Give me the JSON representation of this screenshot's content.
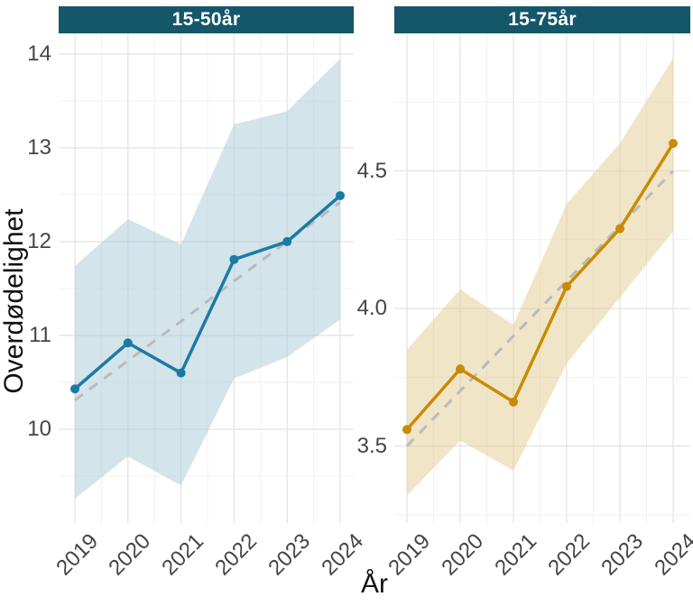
{
  "figure": {
    "ylabel": "Overdødelighet",
    "xlabel": "År"
  },
  "colors": {
    "strip_bg": "#14566a",
    "strip_text": "#ffffff",
    "grid_major": "#e4e4e4",
    "grid_minor": "#f1f1f1",
    "trend": "#b9babc",
    "axis_text": "#454545",
    "axis_title": "#111111",
    "facet1_line": "#1b7aa4",
    "facet1_ribbon": "rgba(175,206,219,0.55)",
    "facet2_line": "#c98b04",
    "facet2_ribbon": "rgba(227,203,143,0.5)"
  },
  "chart_data": [
    {
      "type": "line",
      "facet_label": "15-50år",
      "x": [
        "2019",
        "2020",
        "2021",
        "2022",
        "2023",
        "2024"
      ],
      "series": [
        {
          "name": "observed-excess-mortality",
          "style": "solid-with-points",
          "values": [
            10.43,
            10.92,
            10.6,
            11.81,
            12.0,
            12.49
          ]
        },
        {
          "name": "linear-trend",
          "style": "dashed",
          "values": [
            10.31,
            10.73,
            11.15,
            11.58,
            12.0,
            12.42
          ]
        }
      ],
      "ribbon": {
        "upper": [
          11.74,
          12.24,
          11.97,
          13.25,
          13.39,
          13.95
        ],
        "lower": [
          9.26,
          9.71,
          9.4,
          10.54,
          10.77,
          11.17
        ]
      },
      "yticks": [
        10,
        11,
        12,
        13,
        14
      ],
      "ytick_labels": [
        "10",
        "11",
        "12",
        "13",
        "14"
      ],
      "yminor": [
        9.5,
        10.5,
        11.5,
        12.5,
        13.5
      ],
      "ylim": [
        9.0,
        14.22
      ],
      "line_color": "#1b7aa4",
      "ribbon_color": "rgba(175,206,219,0.55)",
      "grid": true,
      "legend": "none"
    },
    {
      "type": "line",
      "facet_label": "15-75år",
      "x": [
        "2019",
        "2020",
        "2021",
        "2022",
        "2023",
        "2024"
      ],
      "series": [
        {
          "name": "observed-excess-mortality",
          "style": "solid-with-points",
          "values": [
            3.56,
            3.78,
            3.66,
            4.08,
            4.29,
            4.6
          ]
        },
        {
          "name": "linear-trend",
          "style": "dashed",
          "values": [
            3.5,
            3.7,
            3.9,
            4.1,
            4.3,
            4.5
          ]
        }
      ],
      "ribbon": {
        "upper": [
          3.85,
          4.07,
          3.94,
          4.38,
          4.6,
          4.91
        ],
        "lower": [
          3.32,
          3.52,
          3.41,
          3.8,
          4.04,
          4.28
        ]
      },
      "yticks": [
        3.5,
        4.0,
        4.5
      ],
      "ytick_labels": [
        "3.5",
        "4.0",
        "4.5"
      ],
      "yminor": [
        3.25,
        3.75,
        4.25,
        4.75
      ],
      "ylim": [
        3.22,
        5.0
      ],
      "line_color": "#c98b04",
      "ribbon_color": "rgba(227,203,143,0.5)",
      "grid": true,
      "legend": "none"
    }
  ]
}
